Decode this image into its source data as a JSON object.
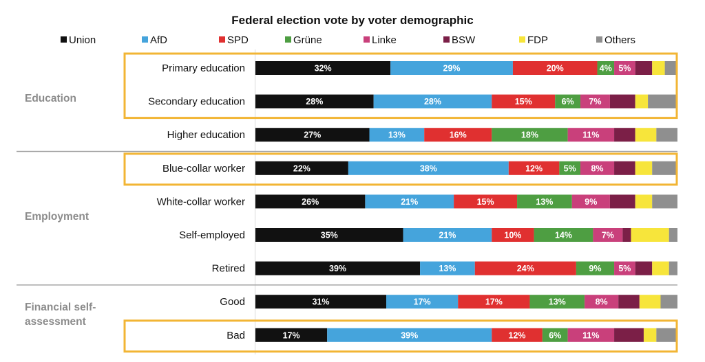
{
  "chart_data": {
    "type": "bar",
    "orientation": "horizontal",
    "stacked": true,
    "title": "Federal election vote by voter demographic",
    "xlabel": "",
    "ylabel": "",
    "xlim": [
      0,
      100
    ],
    "legend_position": "top",
    "grid": false,
    "series": [
      {
        "name": "Union",
        "color": "#111111"
      },
      {
        "name": "AfD",
        "color": "#45a4dc"
      },
      {
        "name": "SPD",
        "color": "#e03030"
      },
      {
        "name": "Grüne",
        "color": "#4e9e42"
      },
      {
        "name": "Linke",
        "color": "#c9407b"
      },
      {
        "name": "BSW",
        "color": "#7b1f47"
      },
      {
        "name": "FDP",
        "color": "#f7e53b"
      },
      {
        "name": "Others",
        "color": "#8f8f8f"
      }
    ],
    "groups": [
      {
        "label_lines": [
          "Education"
        ],
        "highlight_rows": [
          [
            0,
            1
          ]
        ]
      },
      {
        "label_lines": [
          "Employment"
        ],
        "highlight_rows": [
          [
            3,
            3
          ]
        ]
      },
      {
        "label_lines": [
          "Financial self-",
          "assessment"
        ],
        "highlight_rows": [
          [
            8,
            8
          ]
        ]
      }
    ],
    "rows": [
      {
        "category": "Primary education",
        "group": 0,
        "values": [
          32,
          29,
          20,
          4,
          5,
          4,
          3,
          3
        ],
        "labels": [
          "32%",
          "29%",
          "20%",
          "4%",
          "5%",
          "",
          "",
          ""
        ]
      },
      {
        "category": "Secondary education",
        "group": 0,
        "values": [
          28,
          28,
          15,
          6,
          7,
          6,
          3,
          7
        ],
        "labels": [
          "28%",
          "28%",
          "15%",
          "6%",
          "7%",
          "",
          "",
          ""
        ]
      },
      {
        "category": "Higher education",
        "group": 0,
        "values": [
          27,
          13,
          16,
          18,
          11,
          5,
          5,
          5
        ],
        "labels": [
          "27%",
          "13%",
          "16%",
          "18%",
          "11%",
          "",
          "",
          ""
        ]
      },
      {
        "category": "Blue-collar worker",
        "group": 1,
        "values": [
          22,
          38,
          12,
          5,
          8,
          5,
          4,
          6
        ],
        "labels": [
          "22%",
          "38%",
          "12%",
          "5%",
          "8%",
          "",
          "",
          ""
        ]
      },
      {
        "category": "White-collar worker",
        "group": 1,
        "values": [
          26,
          21,
          15,
          13,
          9,
          6,
          4,
          6
        ],
        "labels": [
          "26%",
          "21%",
          "15%",
          "13%",
          "9%",
          "",
          "",
          ""
        ]
      },
      {
        "category": "Self-employed",
        "group": 1,
        "values": [
          35,
          21,
          10,
          14,
          7,
          2,
          9,
          2
        ],
        "labels": [
          "35%",
          "21%",
          "10%",
          "14%",
          "7%",
          "",
          "",
          ""
        ]
      },
      {
        "category": "Retired",
        "group": 1,
        "values": [
          39,
          13,
          24,
          9,
          5,
          4,
          4,
          2
        ],
        "labels": [
          "39%",
          "13%",
          "24%",
          "9%",
          "5%",
          "",
          "",
          ""
        ]
      },
      {
        "category": "Good",
        "group": 2,
        "values": [
          31,
          17,
          17,
          13,
          8,
          5,
          5,
          4
        ],
        "labels": [
          "31%",
          "17%",
          "17%",
          "13%",
          "8%",
          "",
          "",
          ""
        ]
      },
      {
        "category": "Bad",
        "group": 2,
        "values": [
          17,
          39,
          12,
          6,
          11,
          7,
          3,
          5
        ],
        "labels": [
          "17%",
          "39%",
          "12%",
          "6%",
          "11%",
          "",
          "",
          ""
        ]
      }
    ]
  }
}
